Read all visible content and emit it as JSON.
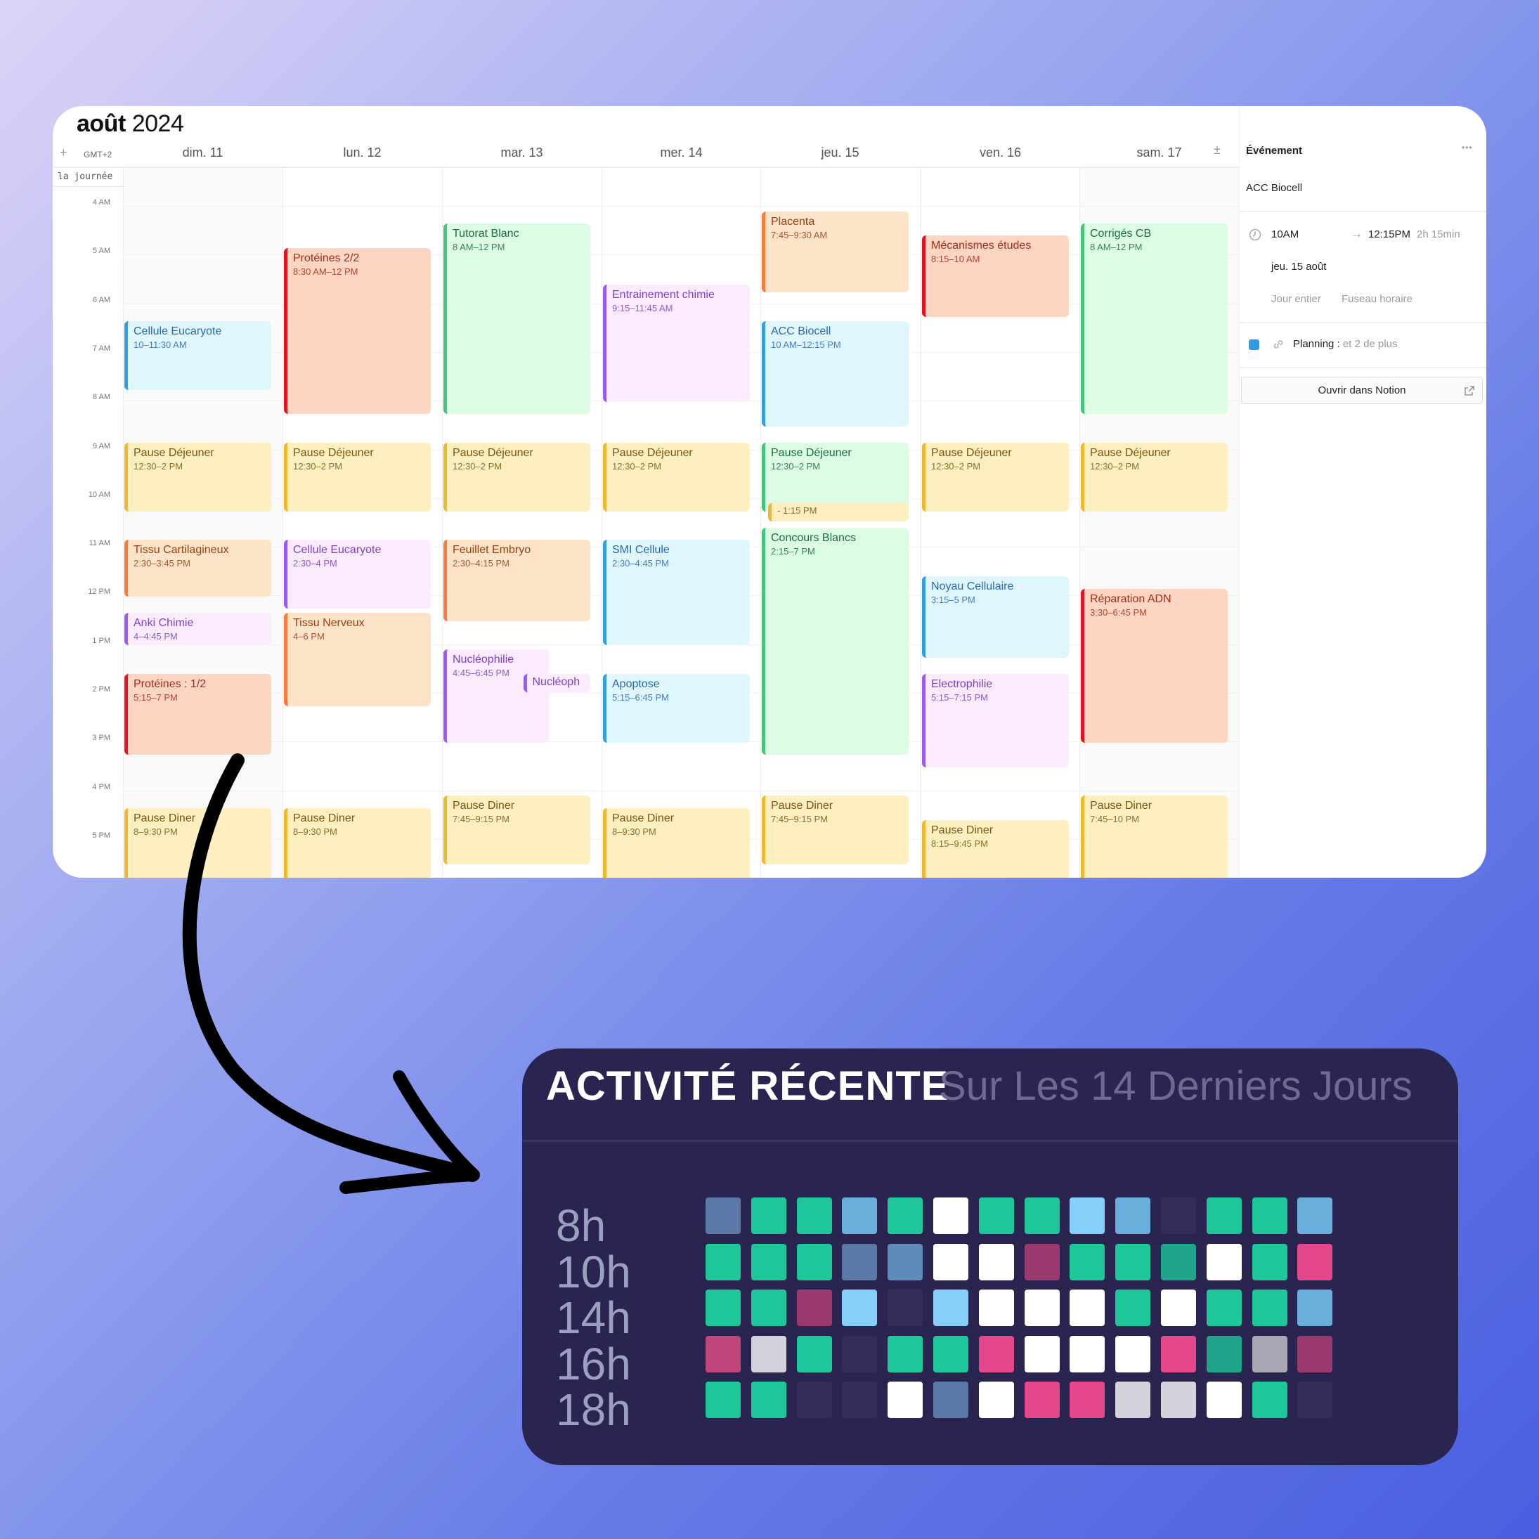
{
  "calendar": {
    "month": "août",
    "year": "2024",
    "add_label": "+",
    "timezone": "GMT+2",
    "expand_label": "±",
    "all_day_label": "la journée",
    "days": [
      "dim. 11",
      "lun. 12",
      "mar. 13",
      "mer. 14",
      "jeu. 15",
      "ven. 16",
      "sam. 17"
    ],
    "hours": [
      "4 AM",
      "5 AM",
      "6 AM",
      "7 AM",
      "8 AM",
      "9 AM",
      "10 AM",
      "11 AM",
      "12 PM",
      "1 PM",
      "2 PM",
      "3 PM",
      "4 PM",
      "5 PM"
    ],
    "columns": [
      {
        "events": [
          {
            "title": "Cellule Eucaryote",
            "time": "10–11:30 AM",
            "color": "blue"
          },
          {
            "title": "Pause Déjeuner",
            "time": "12:30–2 PM",
            "color": "yellow"
          },
          {
            "title": "Tissu Cartilagineux",
            "time": "2:30–3:45 PM",
            "color": "orange"
          },
          {
            "title": "Anki Chimie",
            "time": "4–4:45 PM",
            "color": "purple"
          },
          {
            "title": "Protéines : 1/2",
            "time": "5:15–7 PM",
            "color": "red"
          },
          {
            "title": "Pause Diner",
            "time": "8–9:30 PM",
            "color": "yellow"
          }
        ]
      },
      {
        "events": [
          {
            "title": "Protéines 2/2",
            "time": "8:30 AM–12 PM",
            "color": "red"
          },
          {
            "title": "Pause Déjeuner",
            "time": "12:30–2 PM",
            "color": "yellow"
          },
          {
            "title": "Cellule Eucaryote",
            "time": "2:30–4 PM",
            "color": "purple"
          },
          {
            "title": "Tissu Nerveux",
            "time": "4–6 PM",
            "color": "orange"
          },
          {
            "title": "Pause Diner",
            "time": "8–9:30 PM",
            "color": "yellow"
          }
        ]
      },
      {
        "events": [
          {
            "title": "Tutorat Blanc",
            "time": "8 AM–12 PM",
            "color": "green"
          },
          {
            "title": "Pause Déjeuner",
            "time": "12:30–2 PM",
            "color": "yellow"
          },
          {
            "title": "Feuillet Embryo",
            "time": "2:30–4:15 PM",
            "color": "orange"
          },
          {
            "title": "Nucléophilie",
            "time": "4:45–6:45 PM",
            "color": "purple"
          },
          {
            "title": "Nucléoph",
            "time": "",
            "color": "purple"
          },
          {
            "title": "Pause Diner",
            "time": "7:45–9:15 PM",
            "color": "yellow"
          }
        ]
      },
      {
        "events": [
          {
            "title": "Entrainement chimie",
            "time": "9:15–11:45 AM",
            "color": "purple"
          },
          {
            "title": "Pause Déjeuner",
            "time": "12:30–2 PM",
            "color": "yellow"
          },
          {
            "title": "SMI Cellule",
            "time": "2:30–4:45 PM",
            "color": "blue"
          },
          {
            "title": "Apoptose",
            "time": "5:15–6:45 PM",
            "color": "blue"
          },
          {
            "title": "Pause Diner",
            "time": "8–9:30 PM",
            "color": "yellow"
          }
        ]
      },
      {
        "events": [
          {
            "title": "Placenta",
            "time": "7:45–9:30 AM",
            "color": "orange"
          },
          {
            "title": "ACC Biocell",
            "time": "10 AM–12:15 PM",
            "color": "blue"
          },
          {
            "title": "Pause Déjeuner",
            "time": "12:30–2 PM",
            "color": "green"
          },
          {
            "title": "",
            "time": "- 1:15 PM",
            "color": "yellow"
          },
          {
            "title": "Concours Blancs",
            "time": "2:15–7 PM",
            "color": "green"
          },
          {
            "title": "Pause Diner",
            "time": "7:45–9:15 PM",
            "color": "yellow"
          }
        ]
      },
      {
        "events": [
          {
            "title": "Mécanismes études",
            "time": "8:15–10 AM",
            "color": "red"
          },
          {
            "title": "Pause Déjeuner",
            "time": "12:30–2 PM",
            "color": "yellow"
          },
          {
            "title": "Noyau Cellulaire",
            "time": "3:15–5 PM",
            "color": "blue"
          },
          {
            "title": "Electrophilie",
            "time": "5:15–7:15 PM",
            "color": "purple"
          },
          {
            "title": "Pause Diner",
            "time": "8:15–9:45 PM",
            "color": "yellow"
          }
        ]
      },
      {
        "events": [
          {
            "title": "Corrigés CB",
            "time": "8 AM–12 PM",
            "color": "green"
          },
          {
            "title": "Pause Déjeuner",
            "time": "12:30–2 PM",
            "color": "yellow"
          },
          {
            "title": "Réparation ADN",
            "time": "3:30–6:45 PM",
            "color": "red"
          },
          {
            "title": "Pause Diner",
            "time": "7:45–10 PM",
            "color": "yellow"
          }
        ]
      }
    ]
  },
  "event_panel": {
    "header": "Événement",
    "more_label": "•••",
    "title": "ACC Biocell",
    "start": "10AM",
    "end": "12:15PM",
    "duration": "2h 15min",
    "date": "jeu. 15 août",
    "all_day": "Jour entier",
    "timezone": "Fuseau horaire",
    "property_label": "Planning :",
    "property_more": "et 2 de plus",
    "property_color": "#2a9de6",
    "open_button": "Ouvrir dans Notion"
  },
  "activity": {
    "title": "ACTIVITÉ RÉCENTE",
    "subtitle": "Sur Les 14 Derniers Jours",
    "palette": {
      "green": "#1ec79a",
      "teal": "#1fa58a",
      "white": "#ffffff",
      "slate": "#5a78a8",
      "steel": "#5f8bbb",
      "lightblue": "#6aaedc",
      "sky": "#87cffb",
      "plum": "#9a3a6e",
      "magenta": "#c0457a",
      "pink": "#e5488a",
      "lightgray": "#d4d3dc",
      "gray": "#a8a8b4",
      "empty": "#342d5a"
    },
    "rows": [
      {
        "label": "8h",
        "cells": [
          "slate",
          "green",
          "green",
          "lightblue",
          "green",
          "white",
          "green",
          "green",
          "sky",
          "lightblue",
          "empty",
          "green",
          "green",
          "lightblue"
        ]
      },
      {
        "label": "10h",
        "cells": [
          "green",
          "green",
          "green",
          "slate",
          "steel",
          "white",
          "white",
          "plum",
          "green",
          "green",
          "teal",
          "white",
          "green",
          "pink"
        ]
      },
      {
        "label": "14h",
        "cells": [
          "green",
          "green",
          "plum",
          "sky",
          "empty",
          "sky",
          "white",
          "white",
          "white",
          "green",
          "white",
          "green",
          "green",
          "lightblue"
        ]
      },
      {
        "label": "16h",
        "cells": [
          "magenta",
          "lightgray",
          "green",
          "empty",
          "green",
          "green",
          "pink",
          "white",
          "white",
          "white",
          "pink",
          "teal",
          "gray",
          "plum"
        ]
      },
      {
        "label": "18h",
        "cells": [
          "green",
          "green",
          "empty",
          "empty",
          "white",
          "slate",
          "white",
          "pink",
          "pink",
          "lightgray",
          "lightgray",
          "white",
          "green",
          "empty"
        ]
      }
    ]
  }
}
